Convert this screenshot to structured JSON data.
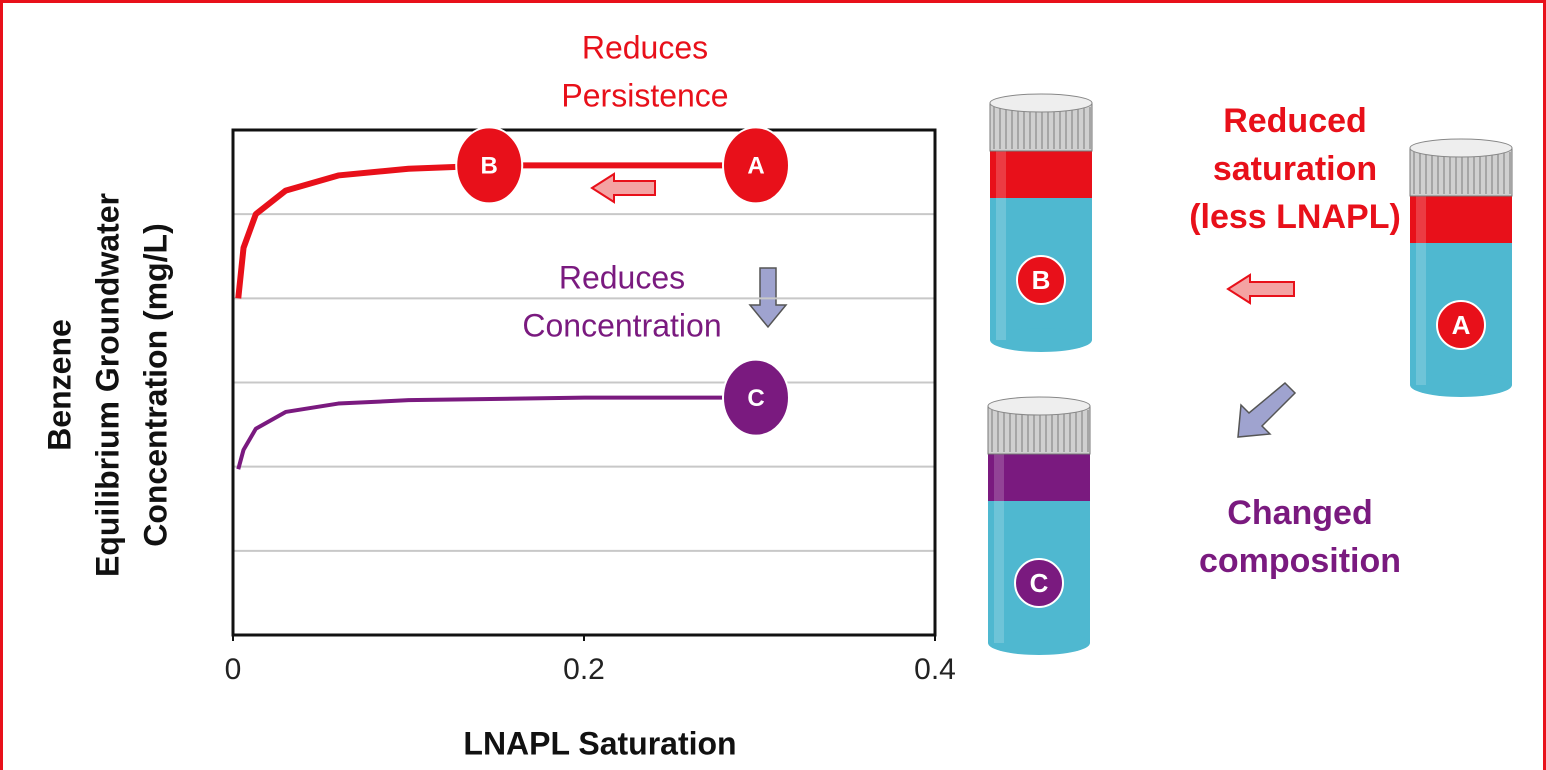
{
  "chart_data": {
    "type": "line",
    "ylabel": [
      "Benzene",
      "Equilibrium Groundwater",
      "Concentration (mg/L)"
    ],
    "xlabel": "LNAPL Saturation",
    "xlim": [
      0,
      0.4
    ],
    "xticks": [
      0,
      0.2,
      0.4
    ],
    "ylim": [
      0,
      6
    ],
    "ygrid": [
      1,
      2,
      3,
      4,
      5
    ],
    "grid": true,
    "series": [
      {
        "color": "#e8101a",
        "x": [
          0.003,
          0.006,
          0.013,
          0.03,
          0.06,
          0.1,
          0.15,
          0.3
        ],
        "values": [
          4.0,
          4.6,
          5.0,
          5.28,
          5.46,
          5.54,
          5.58,
          5.58
        ],
        "markers": [
          {
            "label": "B",
            "x": 0.146,
            "y": 5.58
          },
          {
            "label": "A",
            "x": 0.298,
            "y": 5.58
          }
        ]
      },
      {
        "color": "#7a1a7f",
        "x": [
          0.003,
          0.006,
          0.013,
          0.03,
          0.06,
          0.1,
          0.2,
          0.3
        ],
        "values": [
          1.97,
          2.2,
          2.45,
          2.65,
          2.75,
          2.79,
          2.82,
          2.82
        ],
        "markers": [
          {
            "label": "C",
            "x": 0.298,
            "y": 2.82
          }
        ]
      }
    ],
    "annotations": [
      {
        "lines": [
          "Reduces",
          "Persistence"
        ],
        "color": "#e8101a"
      },
      {
        "lines": [
          "Reduces",
          "Concentration"
        ],
        "color": "#7a1a7f"
      }
    ]
  },
  "diagram": {
    "vials": [
      {
        "label": "B",
        "band": "#e8101a"
      },
      {
        "label": "C",
        "band": "#7a1a7f"
      },
      {
        "label": "A",
        "band": "#e8101a"
      }
    ],
    "notes": [
      {
        "lines": [
          "Reduced",
          "saturation",
          "(less LNAPL)"
        ],
        "color": "#e8101a"
      },
      {
        "lines": [
          "Changed",
          "composition"
        ],
        "color": "#7a1a7f"
      }
    ]
  }
}
